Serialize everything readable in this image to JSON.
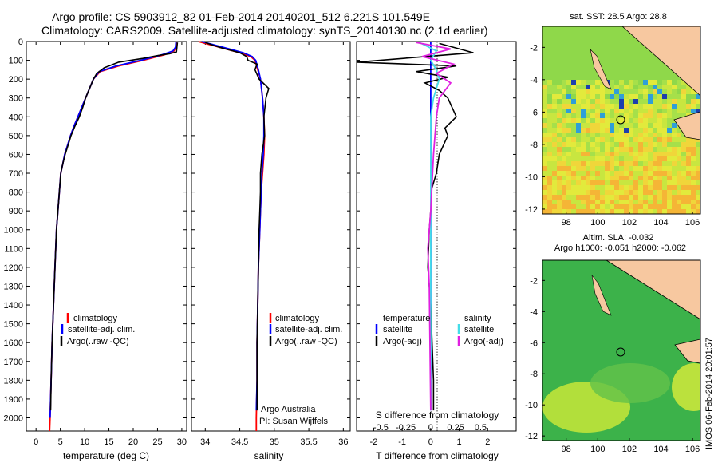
{
  "header": {
    "line1": "Argo profile: CS 5903912_82 01-Feb-2014 20140201_512 6.221S 101.549E",
    "line2": "Climatology: CARS2009. Satellite-adjusted climatology: synTS_20140130.nc (2.1d earlier)"
  },
  "footer_stamp": "IMOS 06-Feb-2014 20:01:57",
  "colors": {
    "climatology": "#ff0000",
    "satellite": "#0000ff",
    "argo": "#000000",
    "sal_satellite": "#44dde8",
    "sal_argo": "#e020e0",
    "land": "#f7c8a0",
    "ocean_green": "#44bb44",
    "ocean_yellow": "#ddee33"
  },
  "chart_data": [
    {
      "id": "temperature",
      "type": "line",
      "xlabel": "temperature (deg C)",
      "ylabel": "",
      "xlim": [
        -2,
        31
      ],
      "ylim": [
        2070,
        0
      ],
      "xticks": [
        0,
        5,
        10,
        15,
        20,
        25,
        30
      ],
      "yticks": [
        0,
        100,
        200,
        300,
        400,
        500,
        600,
        700,
        800,
        900,
        1000,
        1100,
        1200,
        1300,
        1400,
        1500,
        1600,
        1700,
        1800,
        1900,
        2000
      ],
      "legend": [
        "climatology",
        "satellite-adj. clim.",
        "Argo(..raw -QC)"
      ],
      "series": [
        {
          "name": "climatology",
          "color": "#ff0000",
          "x": [
            28.9,
            28.8,
            28.4,
            26.5,
            22,
            17,
            13.2,
            11.8,
            11,
            10.2,
            9.4,
            8.6,
            7.8,
            7.1,
            6.5,
            5.9,
            5.5,
            5.1,
            4.8,
            4.5,
            4.2,
            3.9,
            3.6,
            3.3,
            3.1,
            2.9,
            2.8
          ],
          "y": [
            0,
            30,
            50,
            70,
            100,
            130,
            160,
            200,
            250,
            300,
            350,
            400,
            450,
            500,
            550,
            600,
            650,
            700,
            800,
            900,
            1000,
            1200,
            1400,
            1600,
            1800,
            2000,
            2070
          ]
        },
        {
          "name": "satellite-adj. clim.",
          "color": "#0000ff",
          "x": [
            28.8,
            28.7,
            28.2,
            26,
            21.5,
            16.5,
            13,
            11.8,
            11,
            10.2,
            9.4,
            8.6,
            7.8,
            7.1,
            6.5,
            5.9,
            5.5,
            5.1,
            4.8,
            4.5,
            4.2,
            3.9,
            3.6,
            3.3,
            3.1,
            2.9
          ],
          "y": [
            0,
            30,
            50,
            70,
            100,
            130,
            160,
            200,
            250,
            300,
            350,
            400,
            450,
            500,
            550,
            600,
            650,
            700,
            800,
            900,
            1000,
            1200,
            1400,
            1600,
            1800,
            2000
          ]
        },
        {
          "name": "Argo(..raw -QC)",
          "color": "#000000",
          "x": [
            29.1,
            29,
            28.9,
            27.5,
            25,
            22,
            17,
            14,
            12.5,
            11.8,
            11,
            10.2,
            9.6,
            8.9,
            8,
            7.2,
            6.6,
            6,
            5.5,
            5.1,
            4.8,
            4.5,
            4.2,
            3.9,
            3.6,
            3.3,
            3.1,
            3
          ],
          "y": [
            5,
            30,
            55,
            65,
            75,
            90,
            110,
            140,
            170,
            200,
            250,
            300,
            350,
            400,
            450,
            500,
            550,
            600,
            650,
            700,
            800,
            900,
            1000,
            1200,
            1400,
            1600,
            1800,
            1960
          ]
        }
      ]
    },
    {
      "id": "salinity",
      "type": "line",
      "xlabel": "salinity",
      "xlim": [
        33.8,
        36.1
      ],
      "ylim": [
        2070,
        0
      ],
      "xticks": [
        34,
        34.5,
        35,
        35.5,
        36
      ],
      "legend": [
        "climatology",
        "satellite-adj. clim.",
        "Argo(..raw -QC)"
      ],
      "annotation": [
        "Argo Australia",
        "PI: Susan Wijffels"
      ],
      "series": [
        {
          "name": "climatology",
          "color": "#ff0000",
          "x": [
            33.9,
            34.1,
            34.3,
            34.5,
            34.66,
            34.72,
            34.76,
            34.8,
            34.83,
            34.85,
            34.86,
            34.85,
            34.83,
            34.81,
            34.8,
            34.79,
            34.78,
            34.77,
            34.76,
            34.75,
            34.75,
            34.74,
            34.74
          ],
          "y": [
            0,
            20,
            40,
            60,
            80,
            100,
            150,
            200,
            300,
            400,
            500,
            600,
            700,
            800,
            900,
            1000,
            1100,
            1200,
            1400,
            1600,
            1800,
            2000,
            2070
          ]
        },
        {
          "name": "satellite-adj. clim.",
          "color": "#0000ff",
          "x": [
            33.95,
            34.15,
            34.35,
            34.55,
            34.68,
            34.73,
            34.77,
            34.8,
            34.83,
            34.85,
            34.85,
            34.84,
            34.82,
            34.81,
            34.8,
            34.79,
            34.78,
            34.77,
            34.76,
            34.75,
            34.75,
            34.74
          ],
          "y": [
            0,
            20,
            40,
            60,
            80,
            100,
            150,
            200,
            300,
            400,
            500,
            600,
            700,
            800,
            900,
            1000,
            1100,
            1200,
            1400,
            1600,
            1800,
            1960
          ]
        },
        {
          "name": "Argo(..raw -QC)",
          "color": "#000000",
          "x": [
            34.0,
            34.2,
            34.5,
            34.6,
            34.62,
            34.75,
            34.72,
            34.78,
            34.92,
            34.88,
            34.85,
            34.86,
            34.82,
            34.8,
            34.8,
            34.79,
            34.78,
            34.77,
            34.76,
            34.75,
            34.75
          ],
          "y": [
            5,
            30,
            60,
            80,
            100,
            120,
            150,
            200,
            250,
            300,
            400,
            500,
            600,
            700,
            800,
            900,
            1000,
            1200,
            1400,
            1600,
            1960
          ]
        }
      ]
    },
    {
      "id": "difference",
      "type": "line",
      "xlabel": "T difference from climatology",
      "xlabel2": "S difference from climatology",
      "xlim": [
        -2.6,
        3.0
      ],
      "ylim": [
        2070,
        0
      ],
      "xticks": [
        -2,
        -1,
        0,
        1,
        2
      ],
      "xticks_s": [
        "-0.5",
        "-0.25",
        "0",
        "0.25",
        "0.5"
      ],
      "legend_left": [
        "temperature",
        "satellite",
        "Argo(-adj)"
      ],
      "legend_right": [
        "salinity",
        "satellite",
        "Argo(-adj)"
      ],
      "series": [
        {
          "name": "temperature satellite",
          "color": "#0000ff",
          "x": [
            0,
            0,
            0,
            0,
            0,
            0,
            0,
            0,
            0,
            0,
            0
          ],
          "y": [
            0,
            200,
            400,
            600,
            800,
            1000,
            1200,
            1400,
            1600,
            1800,
            1960
          ]
        },
        {
          "name": "temperature Argo(-adj)",
          "color": "#000000",
          "x": [
            0.3,
            1.5,
            -2.6,
            0.9,
            -0.5,
            0.6,
            -0.2,
            0.3,
            0.6,
            0.9,
            0.5,
            0.6,
            0.3,
            0.2,
            0,
            0,
            -0.05,
            -0.1,
            0,
            0.05,
            0.1,
            0.1
          ],
          "y": [
            10,
            60,
            110,
            130,
            160,
            190,
            220,
            260,
            300,
            400,
            460,
            500,
            600,
            700,
            800,
            900,
            1000,
            1200,
            1400,
            1600,
            1800,
            1960
          ]
        },
        {
          "name": "salinity satellite",
          "color": "#44dde8",
          "x": [
            -0.4,
            0.2,
            0,
            0.2,
            0.3,
            0.1,
            0,
            0,
            0,
            0,
            0,
            0
          ],
          "y": [
            5,
            50,
            100,
            150,
            200,
            300,
            400,
            600,
            800,
            1000,
            1400,
            1960
          ]
        },
        {
          "name": "salinity Argo(-adj)",
          "color": "#e020e0",
          "x": [
            -0.5,
            0.7,
            -0.3,
            0.8,
            0.2,
            0.7,
            0.3,
            0.2,
            0.1,
            0,
            -0.1,
            -0.05,
            0
          ],
          "y": [
            5,
            40,
            80,
            120,
            170,
            220,
            300,
            400,
            600,
            900,
            1100,
            1300,
            1960
          ]
        }
      ]
    },
    {
      "id": "sst_map",
      "type": "heatmap",
      "title": "sat. SST: 28.5 Argo: 28.8",
      "xlim": [
        96.5,
        106.5
      ],
      "ylim": [
        -12.3,
        -0.7
      ],
      "xticks": [
        98,
        100,
        102,
        104,
        106
      ],
      "yticks": [
        -2,
        -4,
        -6,
        -8,
        -10,
        -12
      ],
      "argo_position": [
        101.549,
        -6.221
      ]
    },
    {
      "id": "sla_map",
      "type": "heatmap",
      "title": "Altim. SLA: -0.032",
      "subtitle": "Argo h1000: -0.051 h2000: -0.062",
      "xlim": [
        96.5,
        106.5
      ],
      "ylim": [
        -12.3,
        -0.7
      ],
      "xticks": [
        98,
        100,
        102,
        104,
        106
      ],
      "yticks": [
        -2,
        -4,
        -6,
        -8,
        -10,
        -12
      ],
      "argo_position": [
        101.549,
        -6.221
      ]
    }
  ]
}
